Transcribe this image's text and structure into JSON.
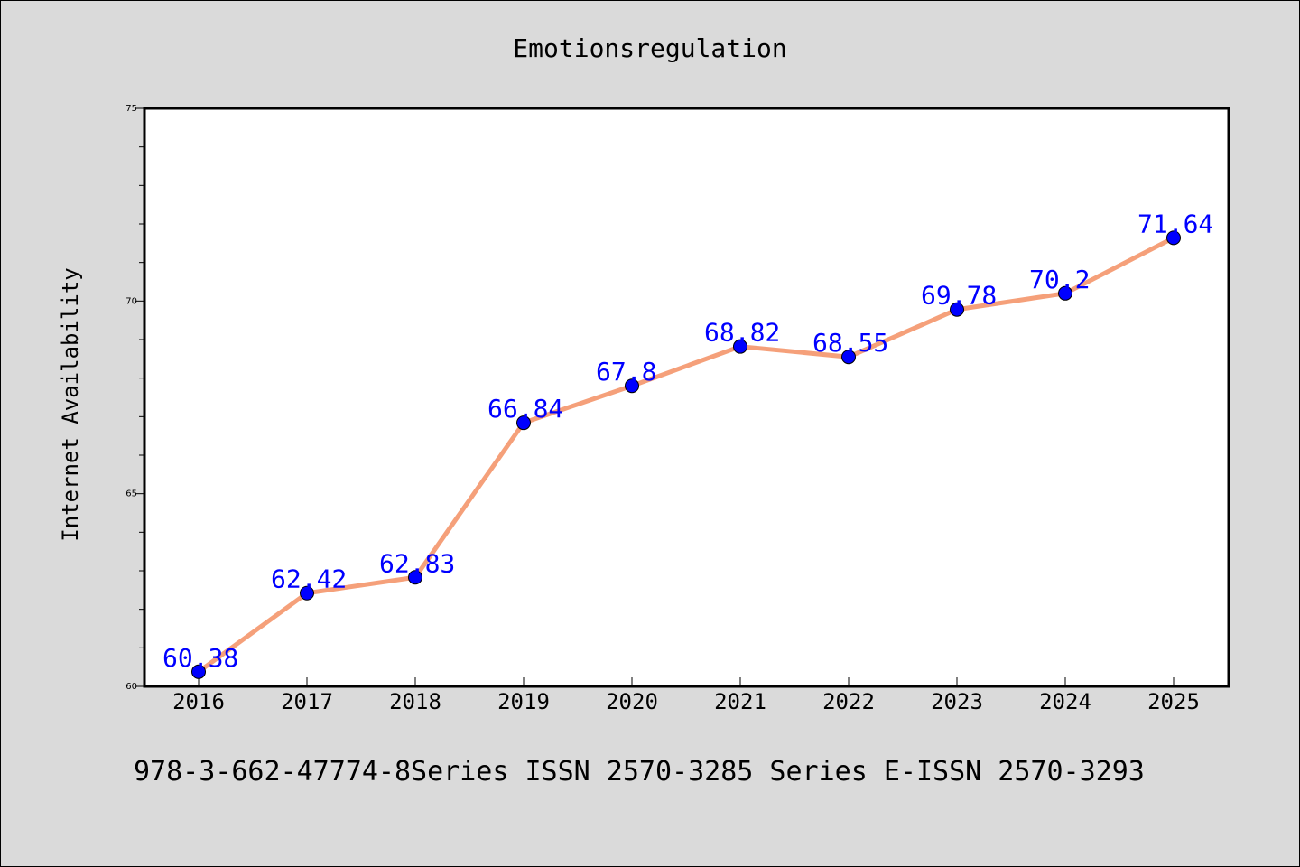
{
  "chart_data": {
    "type": "line",
    "title": "Emotionsregulation",
    "xlabel": "",
    "ylabel": "Internet Availability",
    "categories": [
      "2016",
      "2017",
      "2018",
      "2019",
      "2020",
      "2021",
      "2022",
      "2023",
      "2024",
      "2025"
    ],
    "series": [
      {
        "values": [
          60.38,
          62.42,
          62.83,
          66.84,
          67.8,
          68.82,
          68.55,
          69.78,
          70.2,
          71.64
        ],
        "data_labels": [
          "60.38",
          "62.42",
          "62.83",
          "66.84",
          "67.8",
          "68.82",
          "68.55",
          "69.78",
          "70.2",
          "71.64"
        ]
      }
    ],
    "ylim": [
      60,
      75
    ],
    "yticks": [
      "60",
      "65",
      "70",
      "75"
    ],
    "grid": false,
    "legend": "none",
    "colors": {
      "line": "#f5a07a",
      "marker": "#0000ff",
      "data_label": "#0000ff",
      "background": "#dadada",
      "plot_bg": "#ffffff"
    }
  },
  "footer": "978-3-662-47774-8Series ISSN 2570-3285 Series E-ISSN 2570-3293"
}
